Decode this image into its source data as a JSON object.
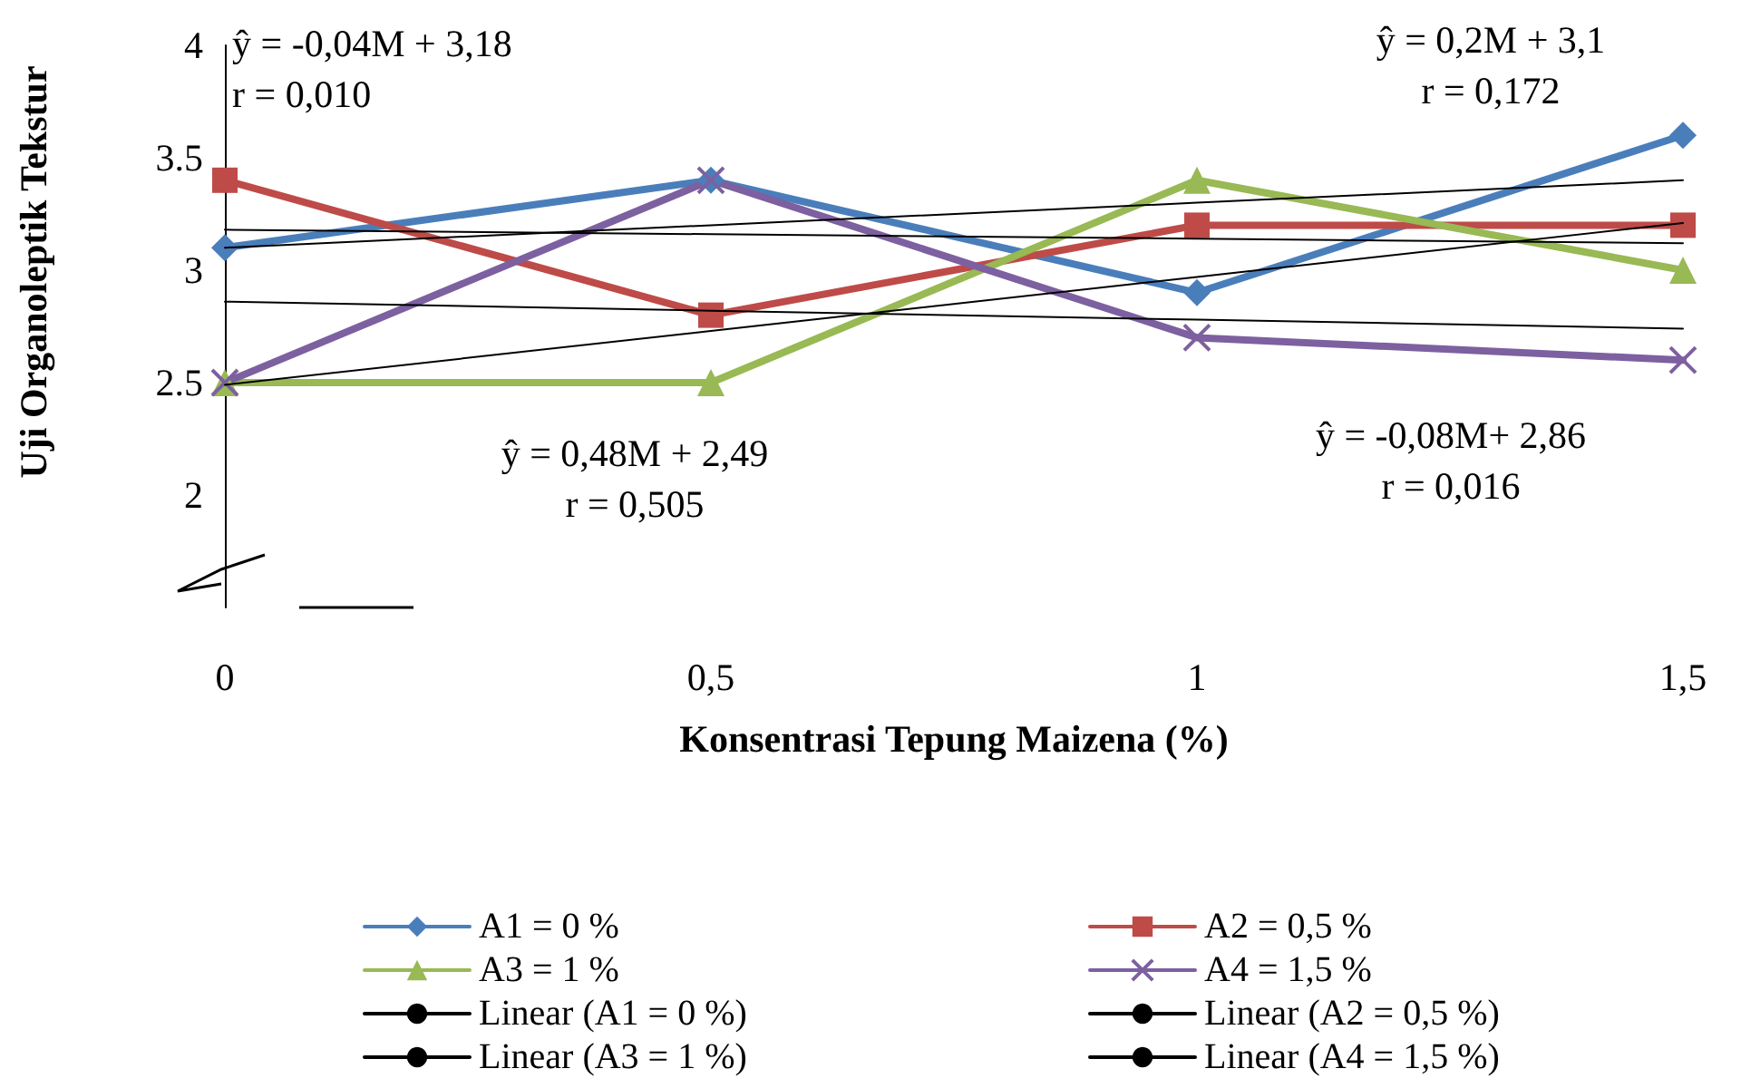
{
  "chart_data": {
    "type": "line",
    "xlabel": "Konsentrasi Tepung Maizena (%)",
    "ylabel": "Uji Organoleptik Tekstur",
    "x": [
      0,
      0.5,
      1,
      1.5
    ],
    "series": [
      {
        "name": "A1 = 0 %",
        "color": "#4a7ebb",
        "marker": "diamond",
        "values": [
          3.1,
          3.4,
          2.9,
          3.6
        ]
      },
      {
        "name": "A2 = 0,5 %",
        "color": "#be4b48",
        "marker": "square",
        "values": [
          3.4,
          2.8,
          3.2,
          3.2
        ]
      },
      {
        "name": "A3 = 1 %",
        "color": "#98b954",
        "marker": "triangle",
        "values": [
          2.5,
          2.5,
          3.4,
          3.0
        ]
      },
      {
        "name": "A4 = 1,5 %",
        "color": "#7d60a0",
        "marker": "cross",
        "values": [
          2.5,
          3.4,
          2.7,
          2.6
        ]
      },
      {
        "name": "Linear (A1 = 0 %)",
        "color": "#000000",
        "marker": "none",
        "values": [
          3.1,
          3.2,
          3.3,
          3.4
        ]
      },
      {
        "name": "Linear (A2 = 0,5 %)",
        "color": "#000000",
        "marker": "none",
        "values": [
          3.18,
          3.16,
          3.14,
          3.12
        ]
      },
      {
        "name": "Linear (A3 = 1 %)",
        "color": "#000000",
        "marker": "none",
        "values": [
          2.49,
          2.73,
          2.97,
          3.21
        ]
      },
      {
        "name": "Linear (A4 = 1,5 %)",
        "color": "#000000",
        "marker": "none",
        "values": [
          2.86,
          2.82,
          2.78,
          2.74
        ]
      }
    ],
    "xlim": [
      0,
      1.5
    ],
    "xticks": [
      0,
      {
        "value": 0.5,
        "label": "0,5"
      },
      1,
      {
        "value": 1.5,
        "label": "1,5"
      }
    ],
    "ylim": [
      1.5,
      4
    ],
    "yticks": [
      2,
      2.5,
      3,
      3.5,
      4
    ],
    "annotations": [
      "ŷ = -0,04M + 3,18\nr = 0,010",
      "ŷ = 0,2M + 3,1\nr = 0,172",
      "ŷ = 0,48M + 2,49\nr = 0,505",
      "ŷ = -0,08M+ 2,86\nr = 0,016"
    ],
    "grid": false,
    "legend": "bottom"
  }
}
